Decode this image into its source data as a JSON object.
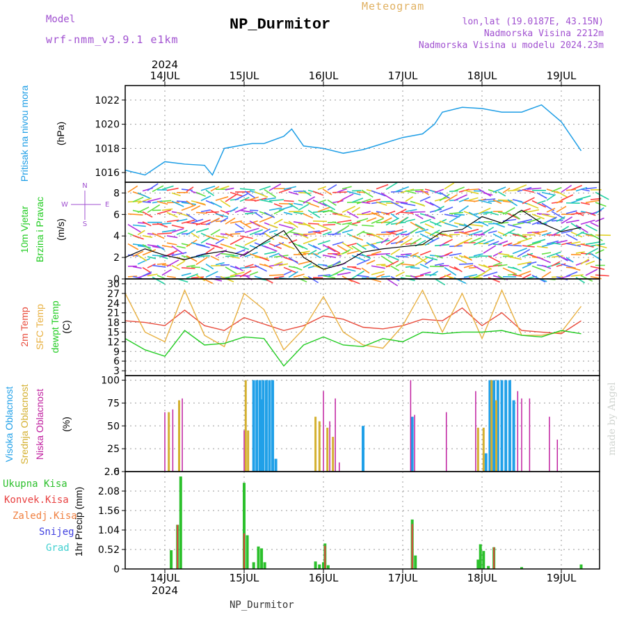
{
  "header": {
    "model_label": "Model",
    "model_name": "wrf-nmm_v3.9.1 e1km",
    "title": "NP_Durmitor",
    "subtitle": "Meteogram",
    "coords": "lon,lat (19.0187E, 43.15N)",
    "altitude": "Nadmorska Visina 2212m",
    "model_altitude": "Nadmorska Visina u modelu 2024.23m"
  },
  "footer": {
    "station": "NP_Durmitor",
    "watermark": "made by Angel"
  },
  "colors": {
    "pressure": "#1e9ee6",
    "temp2m": "#e84a3a",
    "sfc_temp": "#e8b040",
    "dewpoint": "#22cc22",
    "cloud_high": "#20a0e8",
    "cloud_mid": "#d4b030",
    "cloud_low": "#c020a0",
    "precip_total": "#2cc02c",
    "precip_conv": "#e84040",
    "precip_frozen": "#f08040",
    "precip_snow": "#4040e0",
    "precip_hail": "#40d0d0",
    "header_purple": "#a050d0",
    "subtitle_gold": "#e0b060"
  },
  "chart_data": [
    {
      "type": "line",
      "title": "",
      "ylabel": "Pritisak na nivou mora",
      "unit": "(hPa)",
      "xlabel": "",
      "x_ticks": [
        "14JUL",
        "15JUL",
        "16JUL",
        "17JUL",
        "18JUL",
        "19JUL"
      ],
      "year": "2024",
      "ylim": [
        1015.2,
        1023.2
      ],
      "y_ticks": [
        1016,
        1018,
        1020,
        1022
      ],
      "grid": true,
      "x_days": [
        0,
        0.25,
        0.5,
        0.75,
        1,
        1.1,
        1.25,
        1.5,
        1.6,
        1.75,
        2,
        2.1,
        2.25,
        2.5,
        2.75,
        3,
        3.25,
        3.5,
        3.75,
        3.9,
        4,
        4.25,
        4.5,
        4.75,
        5,
        5.25,
        5.5,
        5.75
      ],
      "series": [
        {
          "values": [
            1016.2,
            1015.8,
            1016.9,
            1016.7,
            1016.6,
            1015.8,
            1018.0,
            1018.3,
            1018.4,
            1018.4,
            1019.0,
            1019.6,
            1018.2,
            1018.0,
            1017.6,
            1017.9,
            1018.4,
            1018.9,
            1019.2,
            1020.0,
            1021.0,
            1021.4,
            1021.3,
            1021.0,
            1021.0,
            1021.6,
            1020.2,
            1017.8
          ]
        }
      ]
    },
    {
      "type": "scatter",
      "title": "",
      "ylabel": "10m Vjetar Brzina i Pravac",
      "unit": "(m/s)",
      "compass": [
        "N",
        "W",
        "E",
        "S"
      ],
      "ylim": [
        0,
        9
      ],
      "y_ticks": [
        0,
        2,
        4,
        6,
        8
      ],
      "grid": true,
      "x_days": [
        0,
        0.25,
        0.5,
        0.75,
        1,
        1.25,
        1.5,
        1.75,
        2,
        2.25,
        2.5,
        2.75,
        3,
        3.25,
        3.5,
        3.75,
        4,
        4.25,
        4.5,
        4.75,
        5,
        5.25,
        5.5,
        5.75
      ],
      "series": [
        {
          "values": [
            2.0,
            2.8,
            2.2,
            1.8,
            2.3,
            2.6,
            2.2,
            3.4,
            4.5,
            2.0,
            0.9,
            1.4,
            2.5,
            2.8,
            3.0,
            3.2,
            4.4,
            4.6,
            5.8,
            5.2,
            6.4,
            5.2,
            4.4,
            4.8
          ]
        }
      ]
    },
    {
      "type": "line",
      "title": "",
      "ylabels": [
        "2m Temp",
        "SFC Temp",
        "dewpt Temp"
      ],
      "unit": "(C)",
      "ylim": [
        1.5,
        31.5
      ],
      "y_ticks": [
        3,
        6,
        9,
        12,
        15,
        18,
        21,
        24,
        27,
        30
      ],
      "grid": true,
      "x_days": [
        0,
        0.25,
        0.5,
        0.75,
        1,
        1.25,
        1.5,
        1.75,
        2,
        2.25,
        2.5,
        2.75,
        3,
        3.25,
        3.5,
        3.75,
        4,
        4.25,
        4.5,
        4.75,
        5,
        5.25,
        5.5,
        5.75
      ],
      "series": [
        {
          "name": "2m Temp",
          "values": [
            18.5,
            18.0,
            17.0,
            21.8,
            17.0,
            15.5,
            19.5,
            17.5,
            15.5,
            17.0,
            20.0,
            19.0,
            16.5,
            16.0,
            17.0,
            19.0,
            18.5,
            22.5,
            17.0,
            21.0,
            15.5,
            15.0,
            14.5,
            18.5
          ]
        },
        {
          "name": "SFC Temp",
          "values": [
            27.0,
            15.0,
            12.0,
            28.0,
            14.0,
            10.5,
            27.0,
            22.0,
            9.5,
            16.0,
            26.0,
            15.0,
            11.0,
            10.0,
            17.0,
            28.0,
            15.0,
            27.0,
            13.0,
            28.0,
            14.0,
            14.0,
            15.0,
            23.0
          ]
        },
        {
          "name": "dewpt Temp",
          "values": [
            13.0,
            9.5,
            7.5,
            15.5,
            11.0,
            11.5,
            13.5,
            13.0,
            4.5,
            11.0,
            13.5,
            11.0,
            10.5,
            13.0,
            12.0,
            15.0,
            14.5,
            15.0,
            15.0,
            15.5,
            14.0,
            13.5,
            15.5,
            14.5
          ]
        }
      ]
    },
    {
      "type": "bar",
      "title": "",
      "ylabels": [
        "Visoka Oblacnost",
        "Srednja Oblacnost",
        "Niska Oblacnost"
      ],
      "unit": "(%)",
      "ylim": [
        0,
        105
      ],
      "y_ticks": [
        0,
        25,
        50,
        75,
        100
      ],
      "grid": true,
      "series": [
        {
          "name": "Visoka Oblacnost",
          "points": [
            [
              1.72,
              79
            ],
            [
              3.0,
              50
            ],
            [
              3.62,
              60
            ],
            [
              4.1,
              0
            ],
            [
              4.55,
              20
            ],
            [
              4.6,
              100
            ],
            [
              4.65,
              100
            ],
            [
              4.7,
              100
            ],
            [
              4.75,
              100
            ],
            [
              4.8,
              100
            ],
            [
              4.85,
              100
            ],
            [
              4.9,
              78
            ],
            [
              5.05,
              0
            ],
            [
              1.62,
              100
            ],
            [
              1.66,
              100
            ],
            [
              1.7,
              100
            ],
            [
              1.74,
              100
            ],
            [
              1.78,
              100
            ],
            [
              1.82,
              100
            ],
            [
              1.86,
              100
            ],
            [
              1.9,
              14
            ]
          ]
        },
        {
          "name": "Srednja Oblacnost",
          "points": [
            [
              0.55,
              65
            ],
            [
              0.68,
              78
            ],
            [
              1.52,
              100
            ],
            [
              1.55,
              45
            ],
            [
              2.4,
              60
            ],
            [
              2.45,
              55
            ],
            [
              2.55,
              48
            ],
            [
              2.62,
              38
            ],
            [
              4.45,
              48
            ],
            [
              4.52,
              48
            ],
            [
              4.62,
              100
            ],
            [
              4.68,
              78
            ]
          ]
        },
        {
          "name": "Niska Oblacnost",
          "points": [
            [
              0.5,
              65
            ],
            [
              0.6,
              68
            ],
            [
              0.72,
              80
            ],
            [
              1.5,
              45
            ],
            [
              2.5,
              88
            ],
            [
              2.58,
              55
            ],
            [
              2.65,
              80
            ],
            [
              2.7,
              10
            ],
            [
              3.6,
              100
            ],
            [
              3.65,
              62
            ],
            [
              4.05,
              65
            ],
            [
              4.42,
              88
            ],
            [
              4.95,
              88
            ],
            [
              5.0,
              80
            ],
            [
              5.1,
              80
            ],
            [
              5.35,
              60
            ],
            [
              5.45,
              35
            ]
          ]
        }
      ]
    },
    {
      "type": "bar",
      "title": "",
      "ylabel": "1hr Precip",
      "unit": "(mm)",
      "legend": [
        "Ukupna Kisa",
        "Konvek.Kisa",
        "Zaledj.Kisa",
        "Snijeg",
        "Grad"
      ],
      "ylim": [
        0,
        2.6
      ],
      "y_ticks": [
        0,
        0.52,
        1.04,
        1.56,
        2.08,
        2.6
      ],
      "x_ticks": [
        "14JUL",
        "15JUL",
        "16JUL",
        "17JUL",
        "18JUL",
        "19JUL"
      ],
      "year": "2024",
      "grid": true,
      "series": [
        {
          "name": "Ukupna Kisa",
          "points": [
            [
              0.58,
              0.5
            ],
            [
              0.66,
              1.18
            ],
            [
              0.7,
              2.47
            ],
            [
              1.5,
              2.3
            ],
            [
              1.54,
              0.9
            ],
            [
              1.62,
              0.18
            ],
            [
              1.68,
              0.6
            ],
            [
              1.72,
              0.55
            ],
            [
              1.76,
              0.18
            ],
            [
              2.4,
              0.2
            ],
            [
              2.45,
              0.12
            ],
            [
              2.5,
              0.18
            ],
            [
              2.52,
              0.68
            ],
            [
              2.56,
              0.1
            ],
            [
              3.62,
              1.32
            ],
            [
              3.66,
              0.36
            ],
            [
              4.45,
              0.25
            ],
            [
              4.48,
              0.66
            ],
            [
              4.52,
              0.48
            ],
            [
              4.58,
              0.08
            ],
            [
              4.65,
              0.58
            ],
            [
              5.0,
              0.05
            ],
            [
              5.75,
              0.12
            ]
          ]
        },
        {
          "name": "Konvek.Kisa",
          "points": [
            [
              0.66,
              1.18
            ],
            [
              1.5,
              0.95
            ],
            [
              2.52,
              0.62
            ],
            [
              3.62,
              1.2
            ],
            [
              4.65,
              0.58
            ]
          ]
        }
      ]
    }
  ]
}
